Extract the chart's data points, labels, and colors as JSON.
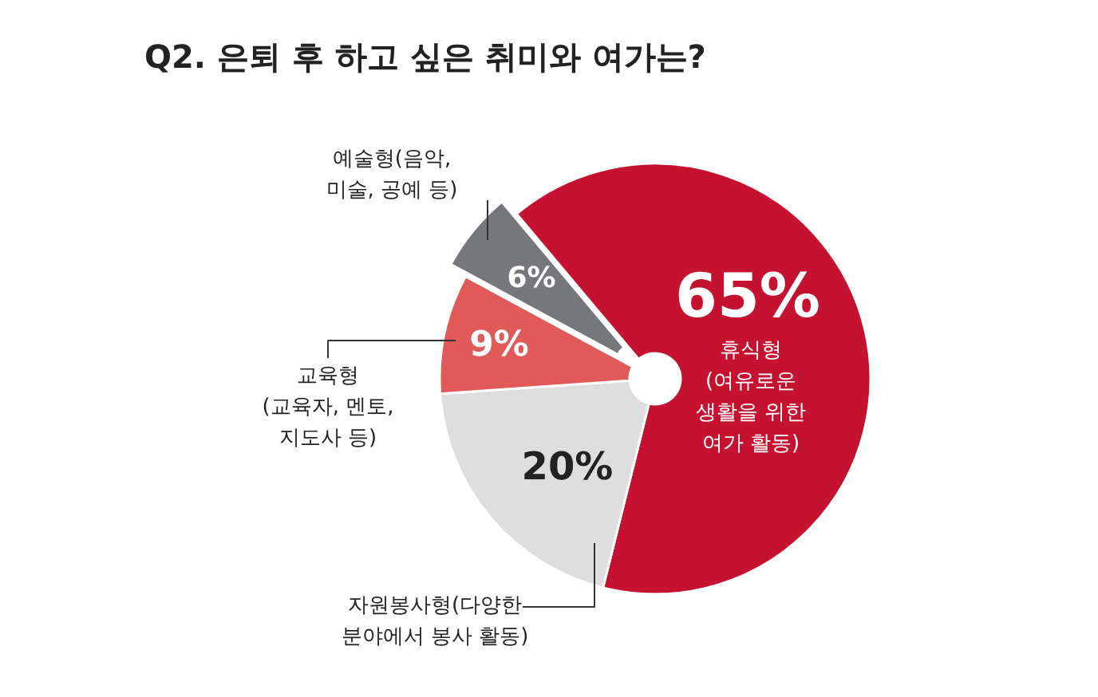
{
  "chart_data": {
    "type": "pie",
    "title": "Q2. 은퇴 후 하고 싶은 취미와 여가는?",
    "categories": [
      "휴식형 (여유로운 생활을 위한 여가 활동)",
      "자원봉사형(다양한 분야에서 봉사 활동)",
      "교육형 (교육자, 멘토, 지도사 등)",
      "예술형(음악, 미술, 공예 등)"
    ],
    "values": [
      65,
      20,
      9,
      6
    ],
    "colors": [
      "#c41230",
      "#dedede",
      "#e05a5a",
      "#76777a"
    ],
    "value_labels": [
      "65%",
      "20%",
      "9%",
      "6%"
    ]
  }
}
